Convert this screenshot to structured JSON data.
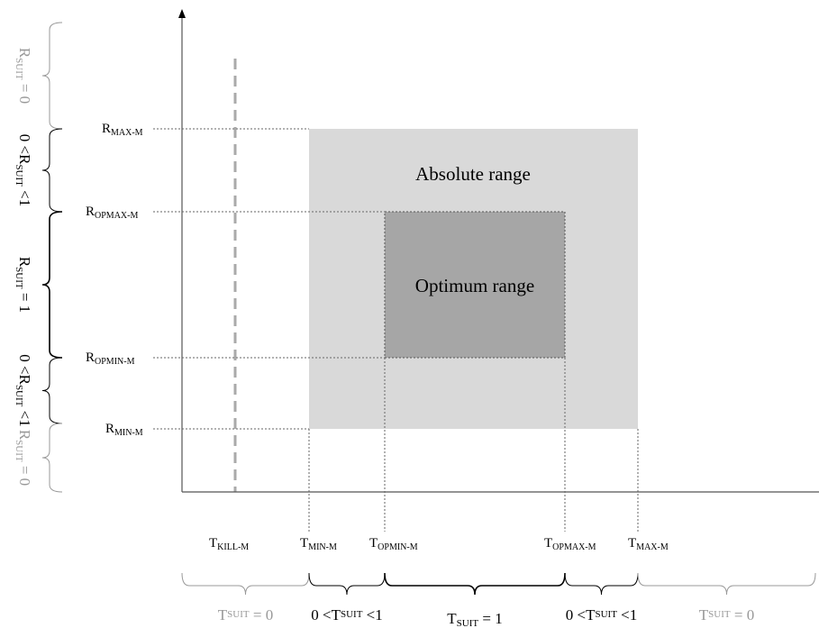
{
  "regions": {
    "absolute": "Absolute range",
    "optimum": "Optimum range"
  },
  "y_labels": [
    {
      "main": "R",
      "sub": "MAX-M"
    },
    {
      "main": "R",
      "sub": "OPMAX-M"
    },
    {
      "main": "R",
      "sub": "OPMIN-M"
    },
    {
      "main": "R",
      "sub": "MIN-M"
    }
  ],
  "x_labels": [
    {
      "main": "T",
      "sub": "KILL-M"
    },
    {
      "main": "T",
      "sub": "MIN-M"
    },
    {
      "main": "T",
      "sub": "OPMIN-M"
    },
    {
      "main": "T",
      "sub": "OPMAX-M"
    },
    {
      "main": "T",
      "sub": "MAX-M"
    }
  ],
  "r_brackets": [
    {
      "pre": "R",
      "sub": "SUIT",
      "post": " = 0"
    },
    {
      "pre": "0 <R",
      "sub": "SUIT",
      "post": " <1"
    },
    {
      "pre": "R",
      "sub": "SUIT",
      "post": " = 1"
    },
    {
      "pre": "0 <R",
      "sub": "SUIT",
      "post": " <1"
    },
    {
      "pre": "R",
      "sub": "SUIT",
      "post": " = 0"
    }
  ],
  "t_brackets": [
    {
      "pre": "T",
      "sub": "SUIT",
      "post": " = 0"
    },
    {
      "pre": "0 <T",
      "sub": "SUIT",
      "post": " <1"
    },
    {
      "pre": "T",
      "sub": "SUIT",
      "post": " = 1"
    },
    {
      "pre": "0 <T",
      "sub": "SUIT",
      "post": " <1"
    },
    {
      "pre": "T",
      "sub": "SUIT",
      "post": " = 0"
    }
  ]
}
